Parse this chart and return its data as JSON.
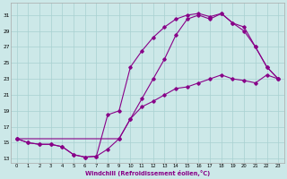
{
  "bg_color": "#cce8e8",
  "grid_color": "#a8d0d0",
  "line_color": "#880088",
  "xlabel": "Windchill (Refroidissement éolien,°C)",
  "xlim": [
    -0.5,
    23.5
  ],
  "ylim": [
    12.5,
    32.5
  ],
  "yticks": [
    13,
    15,
    17,
    19,
    21,
    23,
    25,
    27,
    29,
    31
  ],
  "xticks": [
    0,
    1,
    2,
    3,
    4,
    5,
    6,
    7,
    8,
    9,
    10,
    11,
    12,
    13,
    14,
    15,
    16,
    17,
    18,
    19,
    20,
    21,
    22,
    23
  ],
  "curve1_x": [
    0,
    1,
    2,
    3,
    4,
    5,
    6,
    7,
    8,
    9,
    10,
    11,
    12,
    13,
    14,
    15,
    16,
    17,
    18,
    19,
    20,
    21,
    22,
    23
  ],
  "curve1_y": [
    15.5,
    15.0,
    14.8,
    14.8,
    14.5,
    13.5,
    13.2,
    13.3,
    14.2,
    15.5,
    18.0,
    19.5,
    20.2,
    21.0,
    21.8,
    22.0,
    22.5,
    23.0,
    23.5,
    23.0,
    22.8,
    22.5,
    23.5,
    23.0
  ],
  "curve2_x": [
    0,
    1,
    2,
    3,
    4,
    5,
    6,
    7,
    8,
    9,
    10,
    11,
    12,
    13,
    14,
    15,
    16,
    17,
    18,
    19,
    20,
    21,
    22,
    23
  ],
  "curve2_y": [
    15.5,
    15.0,
    14.8,
    14.8,
    14.5,
    13.5,
    13.2,
    13.3,
    18.5,
    19.0,
    24.5,
    26.5,
    28.2,
    29.5,
    30.5,
    31.0,
    31.2,
    30.8,
    31.2,
    30.0,
    29.0,
    27.0,
    24.5,
    23.0
  ],
  "curve3_x": [
    0,
    9,
    10,
    11,
    12,
    13,
    14,
    15,
    16,
    17,
    18,
    19,
    20,
    21,
    22,
    23
  ],
  "curve3_y": [
    15.5,
    15.5,
    18.0,
    20.5,
    23.0,
    25.5,
    28.5,
    30.5,
    31.0,
    30.5,
    31.2,
    30.0,
    29.5,
    27.0,
    24.5,
    23.0
  ]
}
